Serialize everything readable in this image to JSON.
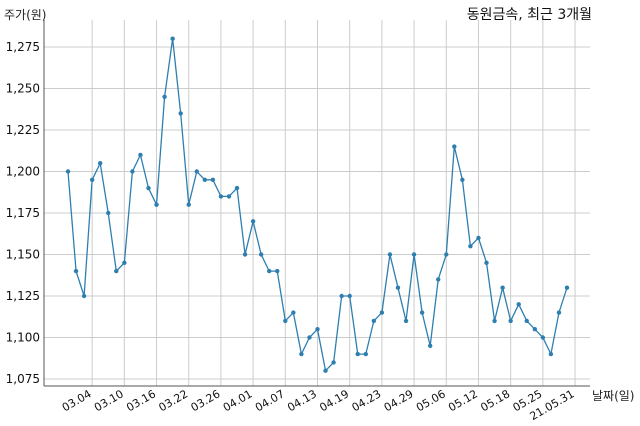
{
  "chart_data": {
    "type": "line",
    "title": "동원금속, 최근 3개월",
    "ylabel": "주가(원)",
    "xlabel": "날짜(일)",
    "ylim": [
      1070,
      1290
    ],
    "yticks": [
      1075,
      1100,
      1125,
      1150,
      1175,
      1200,
      1225,
      1250,
      1275
    ],
    "ytick_labels": [
      "1,075",
      "1,100",
      "1,125",
      "1,150",
      "1,175",
      "1,200",
      "1,225",
      "1,250",
      "1,275"
    ],
    "x_tick_labels": [
      "03.04",
      "03.10",
      "03.16",
      "03.22",
      "03.26",
      "04.01",
      "04.07",
      "04.13",
      "04.19",
      "04.23",
      "04.29",
      "05.06",
      "05.12",
      "05.18",
      "05.25",
      "21.05.31"
    ],
    "x_tick_positions": [
      3,
      7,
      11,
      15,
      19,
      23,
      27,
      31,
      35,
      39,
      43,
      47,
      51,
      55,
      59,
      63
    ],
    "grid": true,
    "color": "#2e7fb0",
    "series": [
      {
        "values": [
          1200,
          1140,
          1125,
          1195,
          1205,
          1175,
          1140,
          1145,
          1200,
          1210,
          1190,
          1180,
          1245,
          1280,
          1235,
          1180,
          1200,
          1195,
          1195,
          1185,
          1185,
          1190,
          1150,
          1170,
          1150,
          1140,
          1140,
          1110,
          1115,
          1090,
          1100,
          1105,
          1080,
          1085,
          1125,
          1125,
          1090,
          1090,
          1110,
          1115,
          1150,
          1130,
          1110,
          1150,
          1115,
          1095,
          1135,
          1150,
          1215,
          1195,
          1155,
          1160,
          1145,
          1110,
          1130,
          1110,
          1120,
          1110,
          1105,
          1100,
          1090,
          1115,
          1130
        ]
      }
    ]
  }
}
